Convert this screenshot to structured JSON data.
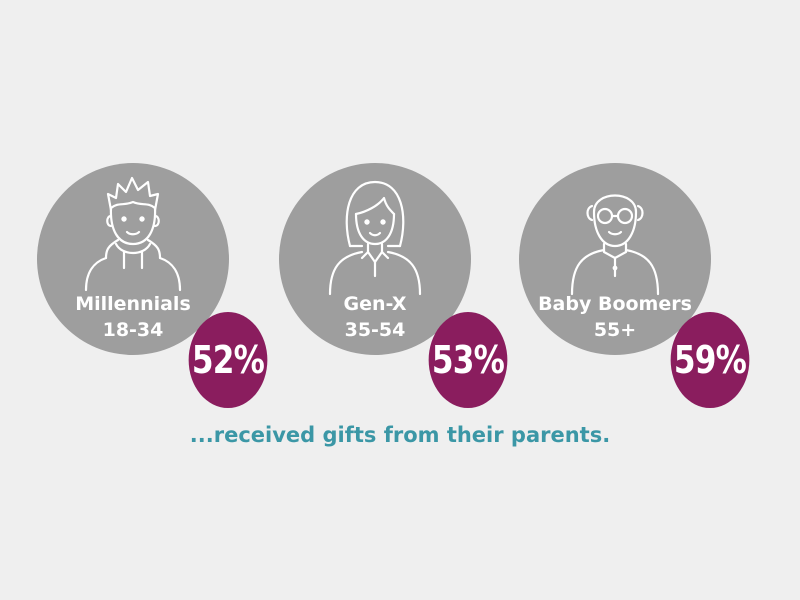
{
  "groups": [
    {
      "name": "Millennials",
      "ages": "18-34",
      "percent": "52%",
      "icon": "young-man-icon"
    },
    {
      "name": "Gen-X",
      "ages": "35-54",
      "percent": "53%",
      "icon": "woman-icon"
    },
    {
      "name": "Baby Boomers",
      "ages": "55+",
      "percent": "59%",
      "icon": "elderly-man-icon"
    }
  ],
  "caption": "...received gifts from their parents.",
  "colors": {
    "background": "#efefef",
    "circle": "#9e9e9e",
    "badge": "#8a1d5e",
    "caption": "#3b97a6"
  }
}
